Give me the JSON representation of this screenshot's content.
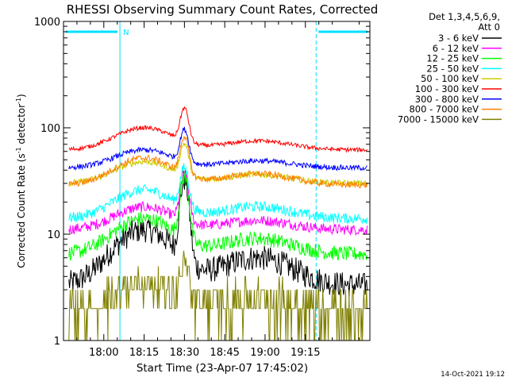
{
  "chart_data": {
    "type": "line",
    "title": "RHESSI Observing Summary Count Rates, Corrected",
    "xlabel": "Start Time (23-Apr-07 17:45:02)",
    "ylabel": "Corrected Count Rate (s",
    "ylabel_sup1": "-1",
    "ylabel_mid": " detector",
    "ylabel_sup2": "-1",
    "ylabel_end": ")",
    "yscale": "log",
    "ylim": [
      1,
      1000
    ],
    "xlim_minutes": [
      0,
      114
    ],
    "x_ticks": [
      {
        "label": "18:00",
        "min": 15
      },
      {
        "label": "18:15",
        "min": 30
      },
      {
        "label": "18:30",
        "min": 45
      },
      {
        "label": "18:45",
        "min": 60
      },
      {
        "label": "19:00",
        "min": 75
      },
      {
        "label": "19:15",
        "min": 90
      }
    ],
    "y_ticks": [
      {
        "label": "1",
        "value": 1
      },
      {
        "label": "10",
        "value": 10
      },
      {
        "label": "100",
        "value": 100
      },
      {
        "label": "1000",
        "value": 1000
      }
    ],
    "legend_header": [
      "Det 1,3,4,5,6,9,",
      "Att 0"
    ],
    "legend_position": "top-right",
    "timestamp": "14-Oct-2021 19:12",
    "night_marker_label": "N",
    "night_intervals_minutes": [
      [
        0,
        21
      ],
      [
        94,
        114
      ]
    ],
    "night_bar_value": 800,
    "series": [
      {
        "name": "3 - 6 keV",
        "color": "#000000",
        "base": 3.3,
        "hump": 11,
        "peak": 30,
        "noise": 0.12
      },
      {
        "name": "6 - 12 keV",
        "color": "#ff00ff",
        "base": 11,
        "hump": 18,
        "peak": 33,
        "noise": 0.05
      },
      {
        "name": "12 - 25 keV",
        "color": "#00ff00",
        "base": 6.5,
        "hump": 14,
        "peak": 32,
        "noise": 0.07
      },
      {
        "name": "25 - 50 keV",
        "color": "#00ffff",
        "base": 14,
        "hump": 26,
        "peak": 38,
        "noise": 0.05
      },
      {
        "name": "50 - 100 keV",
        "color": "#cccc00",
        "base": 30,
        "hump": 48,
        "peak": 65,
        "noise": 0.03
      },
      {
        "name": "100 - 300 keV",
        "color": "#ff0000",
        "base": 62,
        "hump": 100,
        "peak": 140,
        "noise": 0.02
      },
      {
        "name": "300 - 800 keV",
        "color": "#0000ff",
        "base": 42,
        "hump": 62,
        "peak": 90,
        "noise": 0.025
      },
      {
        "name": "800 - 7000 keV",
        "color": "#ff8000",
        "base": 29,
        "hump": 52,
        "peak": 75,
        "noise": 0.03
      },
      {
        "name": "7000 - 15000 keV",
        "color": "#808000",
        "base": 2,
        "hump": 3.5,
        "peak": 5,
        "noise": 0.3
      }
    ]
  }
}
